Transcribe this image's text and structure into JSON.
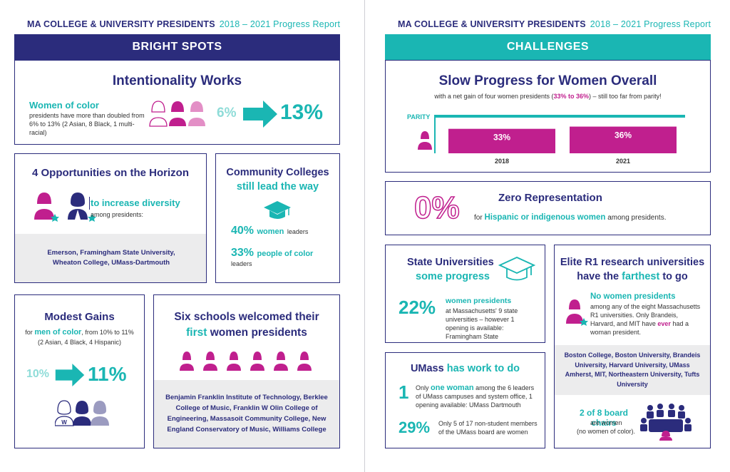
{
  "left_header": {
    "title": "MA COLLEGE & UNIVERSITY PRESIDENTS",
    "subtitle": "2018 – 2021 Progress Report"
  },
  "right_header": {
    "title": "MA COLLEGE & UNIVERSITY PRESIDENTS",
    "subtitle": "2018 – 2021 Progress Report"
  },
  "colors": {
    "navy": "#2b2c7c",
    "teal": "#1ab6b3",
    "magenta": "#c01f8e",
    "light_magenta": "#e38fc6",
    "light_teal": "#8fdcd8",
    "grey": "#ececed"
  },
  "bright_spots": {
    "banner": "BRIGHT SPOTS",
    "intentionality": {
      "title": "Intentionality Works",
      "label": "Women of color",
      "body": "presidents have more than doubled from 6% to 13% (2 Asian, 8 Black, 1 multi-racial)",
      "from": "6%",
      "to": "13%"
    },
    "opportunities": {
      "title": "4 Opportunities on the Horizon",
      "highlight": "to increase diversity",
      "body": "among presidents:",
      "schools": "Emerson, Framingham State University, Wheaton College, UMass-Dartmouth"
    },
    "community": {
      "title1": "Community Colleges",
      "title2": "still lead the way",
      "stat1_value": "40%",
      "stat1_label": "women",
      "stat1_rest": "leaders",
      "stat2_value": "33%",
      "stat2_label": "people of color",
      "stat2_rest": "leaders"
    },
    "modest": {
      "title": "Modest Gains",
      "line1_pre": "for",
      "line1_hl": "men of color",
      "line1_post": ", from 10% to 11%",
      "line2": "(2 Asian, 4 Black, 4 Hispanic)",
      "from": "10%",
      "to": "11%",
      "icon_letter": "W"
    },
    "six": {
      "title1": "Six schools welcomed their",
      "title2_hl": "first",
      "title2_rest": "women presidents",
      "schools": "Benjamin Franklin Institute of Technology, Berklee College of Music, Franklin W Olin College of Engineering, Massasoit Community College, New England Conservatory of Music, Williams College"
    }
  },
  "challenges": {
    "banner": "CHALLENGES",
    "slow": {
      "title": "Slow Progress for Women Overall",
      "sub_pre": "with a net gain of four women presidents (",
      "sub_hl": "33% to 36%",
      "sub_post": ") – still too far from parity!",
      "parity_label": "PARITY"
    },
    "zero": {
      "big": "0%",
      "title": "Zero Representation",
      "pre": "for",
      "hl": "Hispanic or indigenous women",
      "post": "among presidents."
    },
    "state": {
      "title1": "State Universities",
      "title2": "some progress",
      "value": "22%",
      "hl": "women presidents",
      "body": "at Massachusetts' 9 state universities – however 1 opening is available: Framingham State"
    },
    "umass": {
      "title_pre": "UMass",
      "title_hl": "has work to do",
      "stat1_value": "1",
      "stat1_hl": "one woman",
      "stat1_pre": "Only",
      "stat1_body": "among the 6 leaders of UMass campuses and system office, 1 opening available: UMass Dartmouth",
      "stat2_value": "29%",
      "stat2_body": "Only 5 of 17 non-student members of the UMass board are women"
    },
    "elite": {
      "title1": "Elite R1 research universities",
      "title2_pre": "have the",
      "title2_hl": "farthest",
      "title2_post": "to go",
      "hl": "No women presidents",
      "body_pre": "among any of the eight Massachusetts R1 universities. Only Brandeis, Harvard, and MIT have",
      "body_hl": "ever",
      "body_post": "had a woman president.",
      "schools": "Boston College, Boston University, Brandeis University, Harvard University, UMass Amherst, MIT, Northeastern University, Tufts University",
      "board_hl": "2 of 8 board chairs",
      "board_post": "are women",
      "board_note": "(no women of color)."
    }
  },
  "chart_data": {
    "type": "bar",
    "categories": [
      "2018",
      "2021"
    ],
    "values": [
      33,
      36
    ],
    "value_labels": [
      "33%",
      "36%"
    ],
    "title": "",
    "xlabel": "",
    "ylabel": "",
    "ylim": [
      0,
      50
    ],
    "reference_line": {
      "label": "PARITY",
      "value": 50
    }
  }
}
